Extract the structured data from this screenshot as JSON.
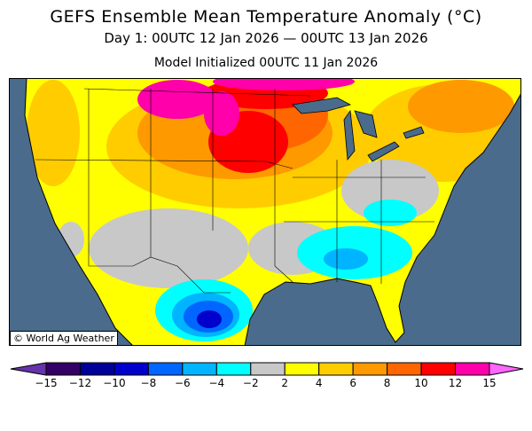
{
  "header": {
    "title": "GEFS Ensemble Mean Temperature Anomaly (°C)",
    "period": "Day 1: 00UTC 12 Jan 2026 — 00UTC 13 Jan 2026",
    "initialized": "Model Initialized 00UTC 11 Jan 2026"
  },
  "map": {
    "copyright": "© World Ag Weather",
    "ocean_color": "#4a6b8c"
  },
  "legend": {
    "labels": [
      "−15",
      "−12",
      "−10",
      "−8",
      "−6",
      "−4",
      "−2",
      "2",
      "4",
      "6",
      "8",
      "10",
      "12",
      "15"
    ],
    "colors": [
      "#330066",
      "#000099",
      "#0000cc",
      "#0066ff",
      "#00b4ff",
      "#00ffff",
      "#c8c8c8",
      "#ffff00",
      "#ffcc00",
      "#ff9900",
      "#ff6600",
      "#ff0000",
      "#ff00aa"
    ],
    "low_extend_color": "#6633aa",
    "high_extend_color": "#ff66ff"
  }
}
